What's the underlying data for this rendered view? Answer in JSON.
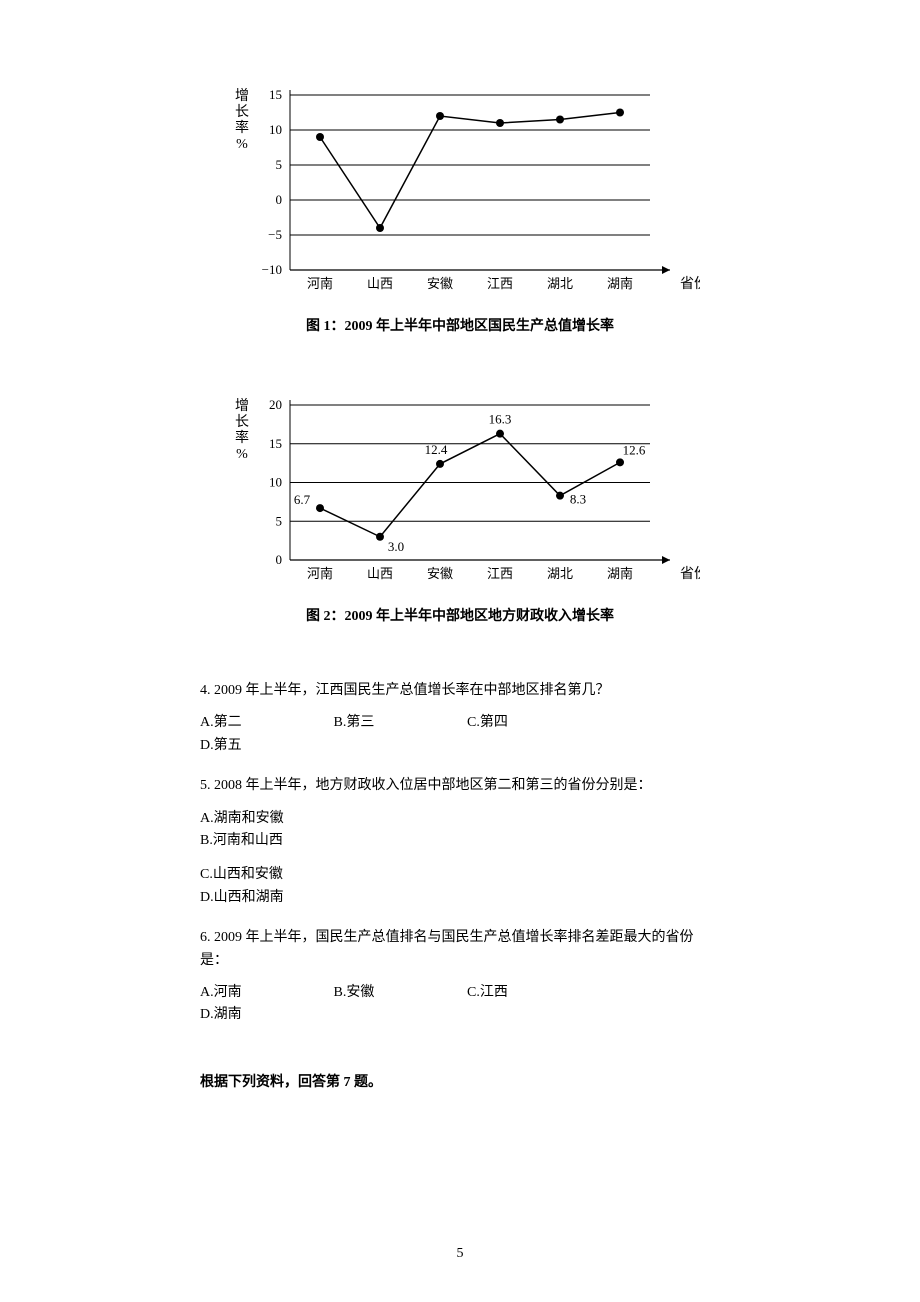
{
  "chart1": {
    "type": "line",
    "title": "图 1：2009 年上半年中部地区国民生产总值增长率",
    "ylabel": "增长率%",
    "xlabel": "省份",
    "categories": [
      "河南",
      "山西",
      "安徽",
      "江西",
      "湖北",
      "湖南"
    ],
    "values": [
      9,
      -4,
      12,
      11,
      11.5,
      12.5
    ],
    "ylim": [
      -10,
      15
    ],
    "ytick_step": 5,
    "yticks": [
      -10,
      -5,
      0,
      5,
      10,
      15
    ],
    "line_color": "#000000",
    "point_color": "#000000",
    "background_color": "#ffffff",
    "axis_color": "#000000",
    "grid_color": "#000000",
    "label_fontsize": 14,
    "tick_fontsize": 13,
    "line_width": 1.5,
    "point_radius": 4
  },
  "chart2": {
    "type": "line",
    "title": "图 2：2009 年上半年中部地区地方财政收入增长率",
    "ylabel": "增长率%",
    "xlabel": "省份",
    "categories": [
      "河南",
      "山西",
      "安徽",
      "江西",
      "湖北",
      "湖南"
    ],
    "values": [
      6.7,
      3.0,
      12.4,
      16.3,
      8.3,
      12.6
    ],
    "value_labels": [
      "6.7",
      "3.0",
      "12.4",
      "16.3",
      "8.3",
      "12.6"
    ],
    "ylim": [
      0,
      20
    ],
    "ytick_step": 5,
    "yticks": [
      0,
      5,
      10,
      15,
      20
    ],
    "line_color": "#000000",
    "point_color": "#000000",
    "background_color": "#ffffff",
    "axis_color": "#000000",
    "grid_color": "#000000",
    "label_fontsize": 14,
    "tick_fontsize": 13,
    "line_width": 1.5,
    "point_radius": 4
  },
  "questions": {
    "q4": {
      "text": "4. 2009 年上半年，江西国民生产总值增长率在中部地区排名第几？",
      "A": "A.第二",
      "B": "B.第三",
      "C": "C.第四",
      "D": "D.第五"
    },
    "q5": {
      "text": "5. 2008 年上半年，地方财政收入位居中部地区第二和第三的省份分别是：",
      "A": "A.湖南和安徽",
      "B": "B.河南和山西",
      "C": "C.山西和安徽",
      "D": "D.山西和湖南"
    },
    "q6": {
      "text": "6. 2009 年上半年，国民生产总值排名与国民生产总值增长率排名差距最大的省份是：",
      "A": "A.河南",
      "B": "B.安徽",
      "C": "C.江西",
      "D": "D.湖南"
    }
  },
  "section_header": "根据下列资料，回答第 7 题。",
  "page_number": "5"
}
